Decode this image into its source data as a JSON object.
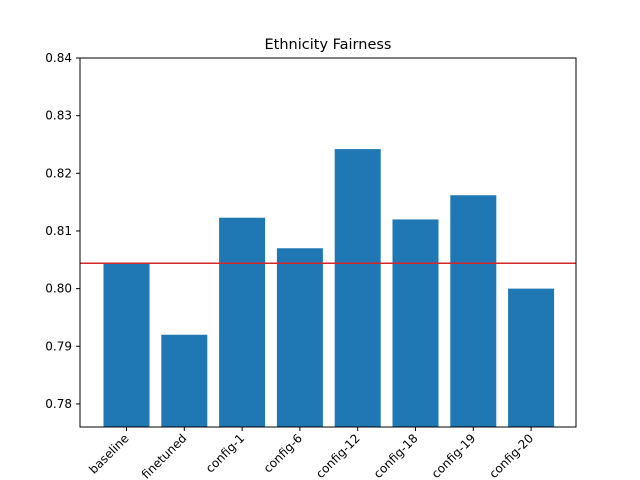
{
  "chart_data": {
    "type": "bar",
    "title": "Ethnicity Fairness",
    "xlabel": "",
    "ylabel": "",
    "categories": [
      "baseline",
      "finetuned",
      "config-1",
      "config-6",
      "config-12",
      "config-18",
      "config-19",
      "config-20"
    ],
    "values": [
      0.8044,
      0.792,
      0.8123,
      0.807,
      0.8242,
      0.812,
      0.8162,
      0.8
    ],
    "ylim": [
      0.776,
      0.84
    ],
    "yticks": [
      "0.78",
      "0.79",
      "0.80",
      "0.81",
      "0.82",
      "0.83",
      "0.84"
    ],
    "reference_line": 0.8044,
    "bar_color": "#1f77b4",
    "line_color": "#d62728",
    "grid": false,
    "legend": "none"
  }
}
